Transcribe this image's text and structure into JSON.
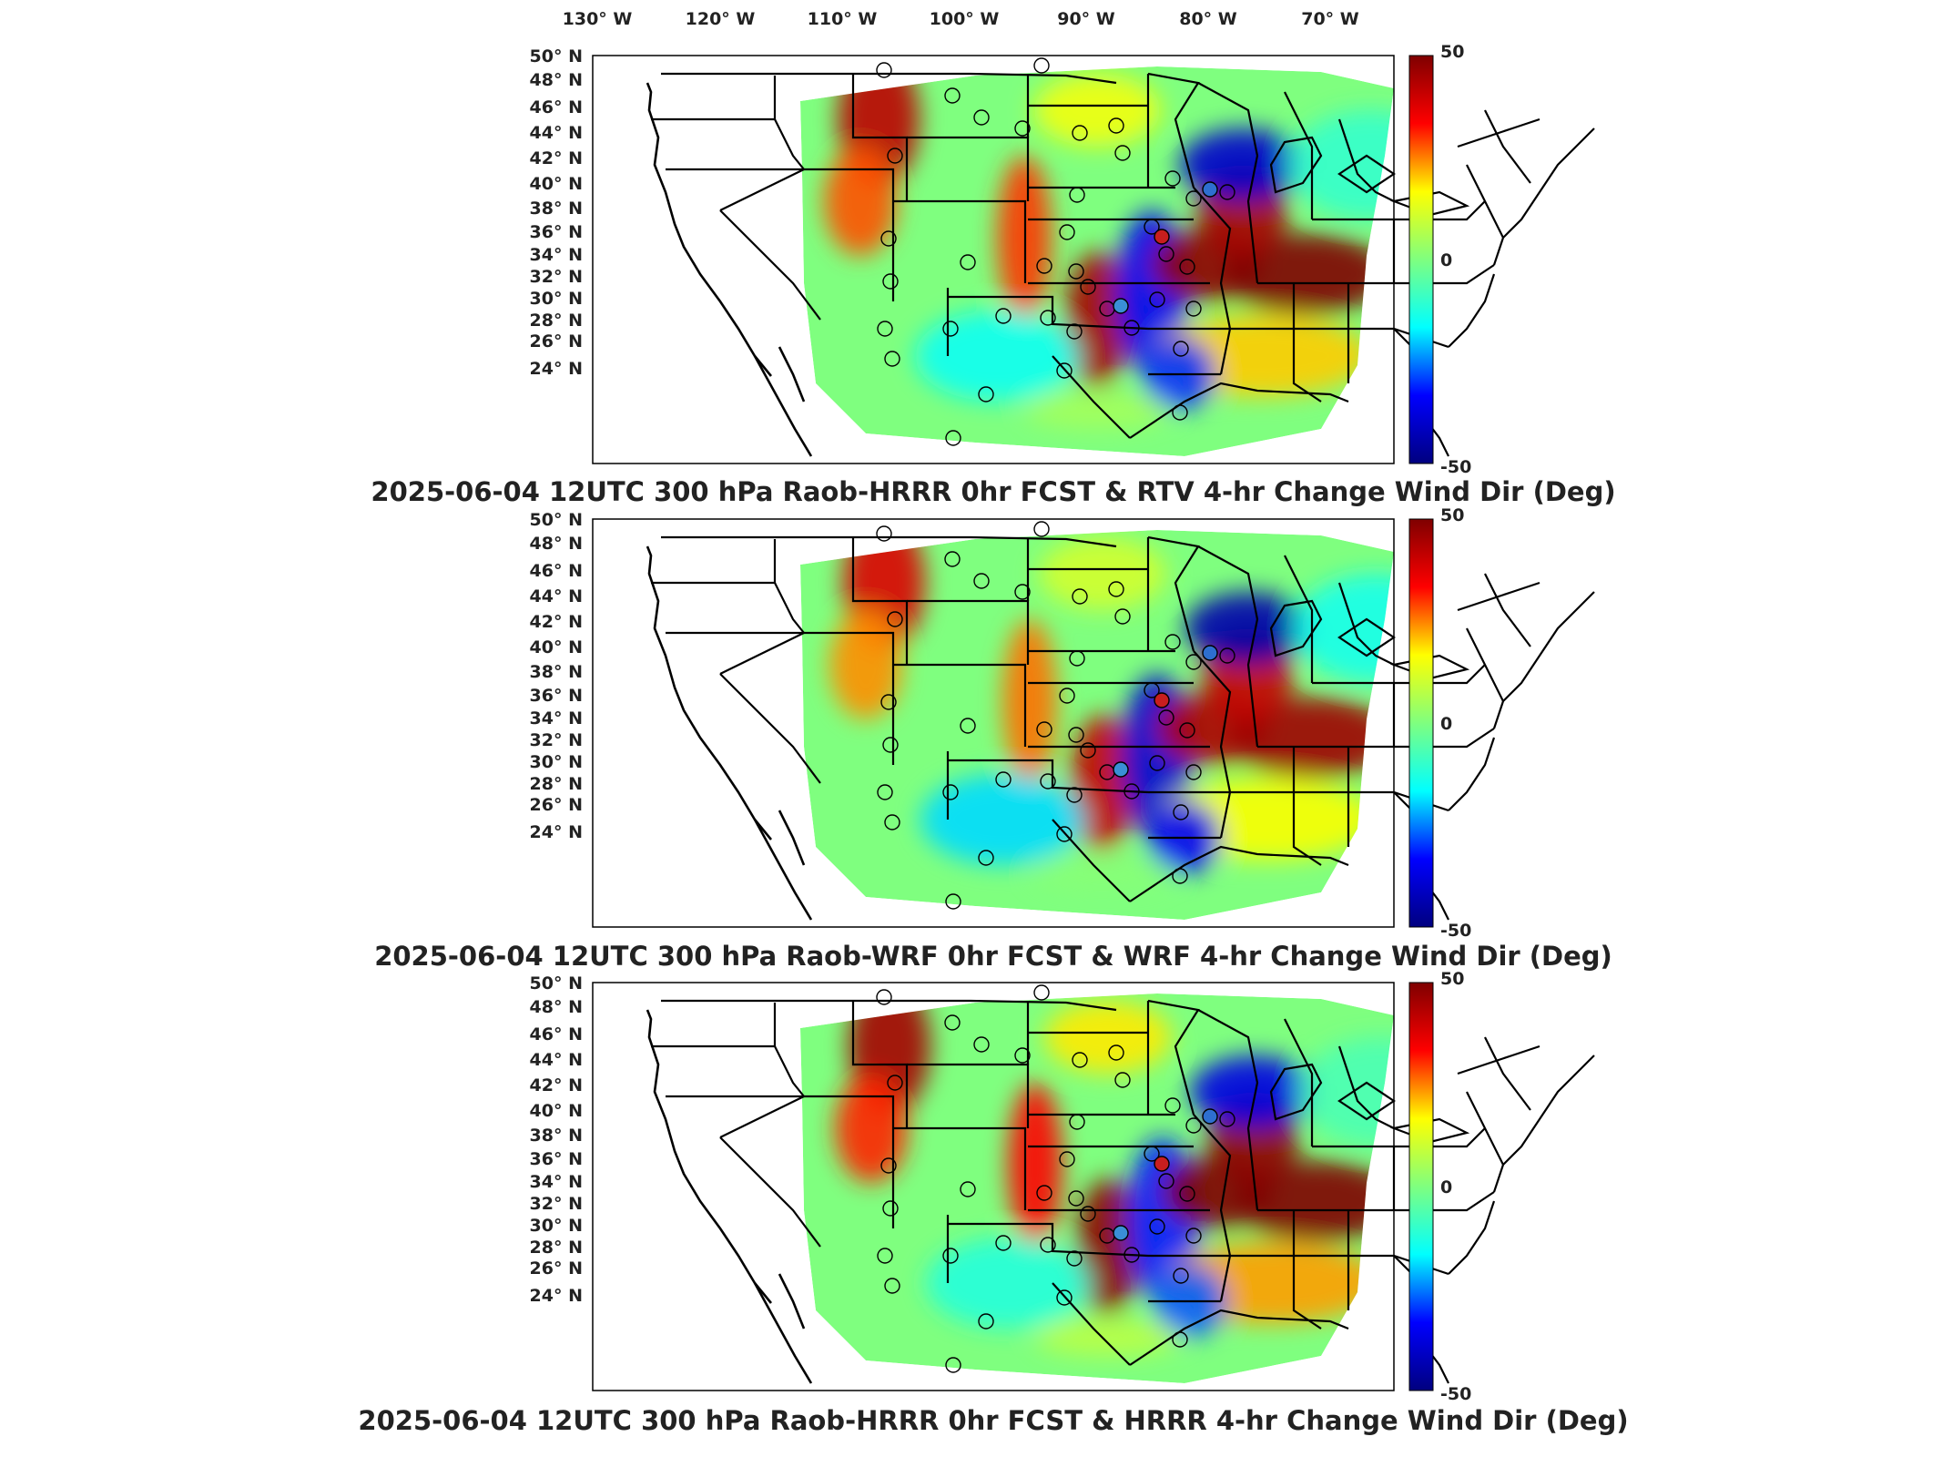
{
  "lon_labels": [
    "130",
    "120",
    "110",
    "100",
    "90",
    "80",
    "70"
  ],
  "lon_hemisphere": "W",
  "lat_labels": [
    "50",
    "48",
    "46",
    "44",
    "42",
    "40",
    "38",
    "36",
    "34",
    "32",
    "30",
    "28",
    "26",
    "24"
  ],
  "lat_hemisphere": "N",
  "degree_symbol": "°",
  "colorbar": {
    "min": -50,
    "mid": 0,
    "max": 50,
    "min_label": "-50",
    "mid_label": "0",
    "max_label": "50",
    "colors": [
      "#00007f",
      "#0000ff",
      "#00ffff",
      "#7fff7f",
      "#ffff00",
      "#ff0000",
      "#7f0000"
    ]
  },
  "panels": [
    {
      "title": "2025-06-04 12UTC 300 hPa Raob-HRRR 0hr FCST & RTV 4-hr Change Wind Dir (Deg)",
      "colored_marker_colors": {
        "dc": "#c81e1e",
        "pit": "#3a8fd6",
        "albany": "#2e6fd0"
      }
    },
    {
      "title": "2025-06-04 12UTC 300 hPa Raob-WRF 0hr FCST & WRF 4-hr Change Wind Dir (Deg)",
      "colored_marker_colors": {
        "dc": "#c81e1e",
        "pit": "#3a8fd6",
        "albany": "#2e6fd0"
      }
    },
    {
      "title": "2025-06-04 12UTC 300 hPa Raob-HRRR 0hr FCST & HRRR 4-hr Change Wind Dir (Deg)",
      "colored_marker_colors": {
        "dc": "#c81e1e",
        "pit": "#3a8fd6",
        "albany": "#2e6fd0"
      }
    }
  ],
  "chart_data": {
    "type": "heatmap",
    "projection": "lambert-conformal",
    "variable_units": "Deg",
    "value_range": [
      -50,
      50
    ],
    "lon_range": [
      -130,
      -65
    ],
    "lat_range": [
      24,
      50
    ],
    "raob_stations": [
      {
        "lon": -111.0,
        "lat": 47.5
      },
      {
        "lon": -100.8,
        "lat": 46.8
      },
      {
        "lon": -97.7,
        "lat": 45.4
      },
      {
        "lon": -93.5,
        "lat": 44.8
      },
      {
        "lon": -89.3,
        "lat": 46.6
      },
      {
        "lon": -88.1,
        "lat": 44.5
      },
      {
        "lon": -84.7,
        "lat": 44.9
      },
      {
        "lon": -83.5,
        "lat": 42.7
      },
      {
        "lon": -79.9,
        "lat": 43.2
      },
      {
        "lon": -73.8,
        "lat": 42.7
      },
      {
        "lon": -72.2,
        "lat": 41.0
      },
      {
        "lon": -108.5,
        "lat": 43.1
      },
      {
        "lon": -109.5,
        "lat": 39.1
      },
      {
        "lon": -104.8,
        "lat": 39.8
      },
      {
        "lon": -96.8,
        "lat": 39.1
      },
      {
        "lon": -96.5,
        "lat": 41.3
      },
      {
        "lon": -89.3,
        "lat": 40.2
      },
      {
        "lon": -86.4,
        "lat": 39.7
      },
      {
        "lon": -80.2,
        "lat": 40.5
      },
      {
        "lon": -77.0,
        "lat": 38.9
      },
      {
        "lon": -110.0,
        "lat": 35.2
      },
      {
        "lon": -104.5,
        "lat": 32.4
      },
      {
        "lon": -101.7,
        "lat": 35.2
      },
      {
        "lon": -97.5,
        "lat": 34.2
      },
      {
        "lon": -92.2,
        "lat": 36.9
      },
      {
        "lon": -86.4,
        "lat": 36.3
      },
      {
        "lon": -84.6,
        "lat": 33.4
      },
      {
        "lon": -80.0,
        "lat": 36.1
      },
      {
        "lon": -78.0,
        "lat": 34.3
      },
      {
        "lon": -81.2,
        "lat": 32.1
      },
      {
        "lon": -86.2,
        "lat": 32.5
      },
      {
        "lon": -90.1,
        "lat": 32.3
      },
      {
        "lon": -93.3,
        "lat": 32.7
      },
      {
        "lon": -92.0,
        "lat": 29.8
      },
      {
        "lon": -97.4,
        "lat": 27.8
      },
      {
        "lon": -100.9,
        "lat": 29.4
      },
      {
        "lon": -106.4,
        "lat": 31.9
      },
      {
        "lon": -81.0,
        "lat": 28.1
      }
    ]
  }
}
